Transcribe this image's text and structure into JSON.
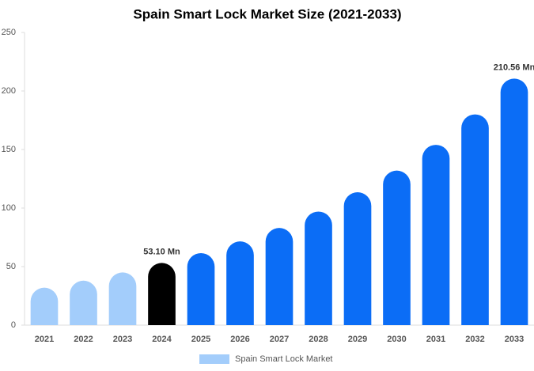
{
  "chart_data": {
    "type": "bar",
    "title": "Spain Smart Lock Market Size (2021-2033)",
    "categories": [
      "2021",
      "2022",
      "2023",
      "2024",
      "2025",
      "2026",
      "2027",
      "2028",
      "2029",
      "2030",
      "2031",
      "2032",
      "2033"
    ],
    "series": [
      {
        "name": "Spain Smart Lock Market",
        "color": "#a3cdfb",
        "values": [
          32,
          38,
          45,
          53.1,
          61.5,
          71.5,
          83,
          97,
          113.5,
          132,
          154,
          180,
          210.56
        ],
        "value_labels": [
          null,
          null,
          null,
          "53.10 Mn",
          null,
          null,
          null,
          null,
          null,
          null,
          null,
          null,
          "210.56 Mn"
        ],
        "colors": [
          "#a3cdfb",
          "#a3cdfb",
          "#a3cdfb",
          "#000000",
          "#0b6df6",
          "#0b6df6",
          "#0b6df6",
          "#0b6df6",
          "#0b6df6",
          "#0b6df6",
          "#0b6df6",
          "#0b6df6",
          "#0b6df6"
        ]
      }
    ],
    "ylim": [
      0,
      250
    ],
    "yticks": [
      0,
      50,
      100,
      150,
      200,
      250
    ],
    "grid": false
  }
}
